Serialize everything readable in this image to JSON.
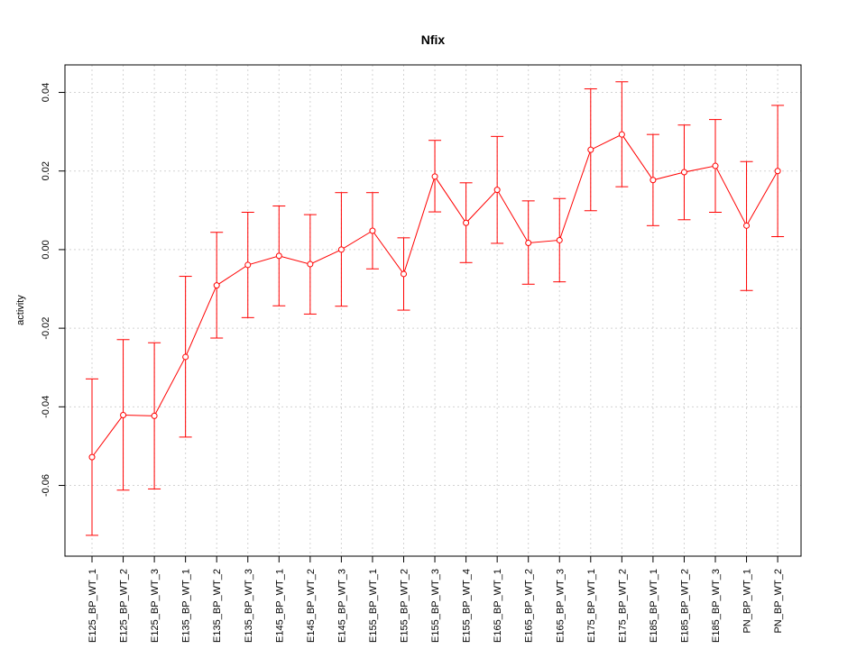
{
  "chart_data": {
    "type": "line",
    "title": "Nfix",
    "xlabel": "",
    "ylabel": "activity",
    "ylim": [
      -0.078,
      0.047
    ],
    "yticks": [
      -0.06,
      -0.04,
      -0.02,
      0.0,
      0.02,
      0.04
    ],
    "ytick_labels": [
      "-0.06",
      "-0.04",
      "-0.02",
      "0.00",
      "0.02",
      "0.04"
    ],
    "grid": true,
    "color": "#ff0000",
    "categories": [
      "E125_BP_WT_1",
      "E125_BP_WT_2",
      "E125_BP_WT_3",
      "E135_BP_WT_1",
      "E135_BP_WT_2",
      "E135_BP_WT_3",
      "E145_BP_WT_1",
      "E145_BP_WT_2",
      "E145_BP_WT_3",
      "E155_BP_WT_1",
      "E155_BP_WT_2",
      "E155_BP_WT_3",
      "E155_BP_WT_4",
      "E165_BP_WT_1",
      "E165_BP_WT_2",
      "E165_BP_WT_3",
      "E175_BP_WT_1",
      "E175_BP_WT_2",
      "E185_BP_WT_1",
      "E185_BP_WT_2",
      "E185_BP_WT_3",
      "PN_BP_WT_1",
      "PN_BP_WT_2"
    ],
    "values": [
      -0.0528,
      -0.0421,
      -0.0423,
      -0.0273,
      -0.0091,
      -0.0039,
      -0.0016,
      -0.0037,
      0.0,
      0.0048,
      -0.0062,
      0.0186,
      0.0068,
      0.0152,
      0.0017,
      0.0024,
      0.0254,
      0.0293,
      0.0177,
      0.0197,
      0.0213,
      0.0061,
      0.02
    ],
    "err_low": [
      -0.0727,
      -0.0612,
      -0.0609,
      -0.0477,
      -0.0225,
      -0.0173,
      -0.0143,
      -0.0164,
      -0.0144,
      -0.0049,
      -0.0154,
      0.0096,
      -0.0033,
      0.0016,
      -0.0088,
      -0.0082,
      0.0099,
      0.016,
      0.0061,
      0.0076,
      0.0095,
      -0.0104,
      0.0033
    ],
    "err_high": [
      -0.0329,
      -0.0229,
      -0.0237,
      -0.0068,
      0.0044,
      0.0095,
      0.0111,
      0.0089,
      0.0145,
      0.0145,
      0.003,
      0.0278,
      0.017,
      0.0288,
      0.0124,
      0.013,
      0.0409,
      0.0427,
      0.0293,
      0.0317,
      0.0331,
      0.0224,
      0.0367
    ]
  }
}
